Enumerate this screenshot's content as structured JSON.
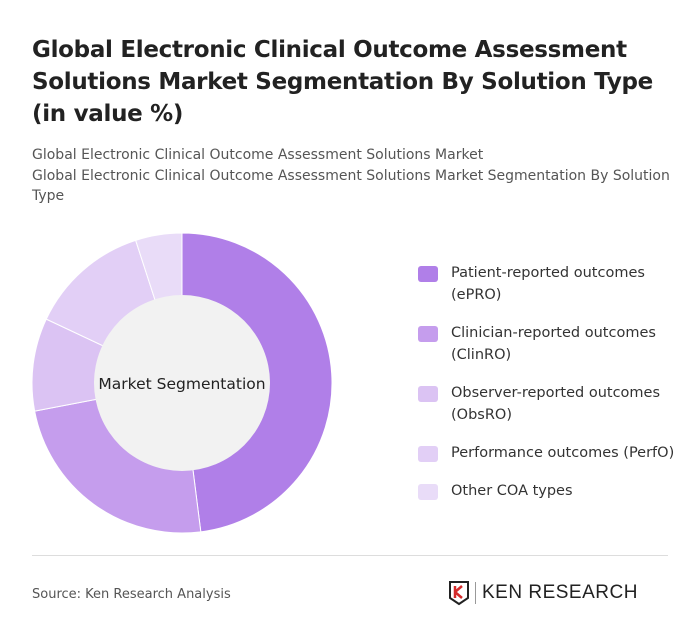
{
  "title": "Global Electronic Clinical Outcome Assessment Solutions Market Segmentation By Solution Type (in value %)",
  "subtitle_1": "Global Electronic Clinical Outcome Assessment Solutions Market",
  "subtitle_2": "Global Electronic Clinical Outcome Assessment Solutions Market Segmentation By Solution Type",
  "chart_data": {
    "type": "pie",
    "donut": true,
    "center_label": "Market Segmentation",
    "categories": [
      "Patient-reported outcomes (ePRO)",
      "Clinician-reported outcomes (ClinRO)",
      "Observer-reported outcomes (ObsRO)",
      "Performance outcomes (PerfO)",
      "Other COA types"
    ],
    "values": [
      48,
      24,
      10,
      13,
      5
    ],
    "colors": [
      "#b07fe8",
      "#c59ded",
      "#dbc3f3",
      "#e2cff6",
      "#e9dcf8"
    ],
    "legend_position": "right"
  },
  "footer": {
    "source": "Source: Ken Research Analysis",
    "logo_text": "KEN RESEARCH"
  }
}
